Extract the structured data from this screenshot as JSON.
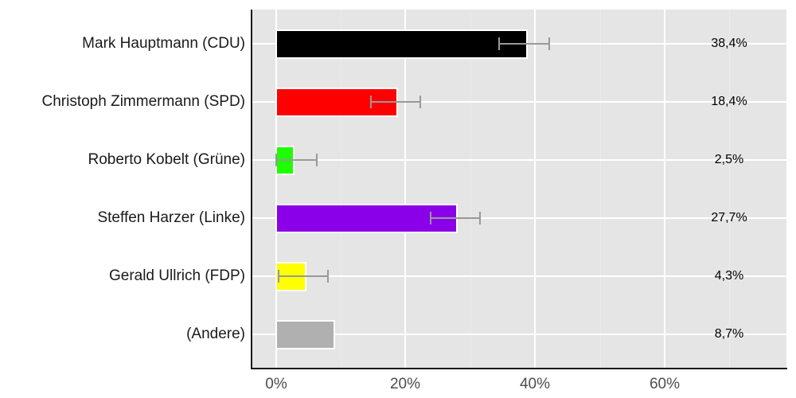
{
  "chart_data": {
    "type": "bar",
    "orientation": "horizontal",
    "title": "",
    "xlabel": "",
    "ylabel": "",
    "xlim": [
      0,
      78
    ],
    "grid": true,
    "categories": [
      "Mark Hauptmann (CDU)",
      "Christoph Zimmermann (SPD)",
      "Roberto Kobelt (Grüne)",
      "Steffen Harzer (Linke)",
      "Gerald Ullrich (FDP)",
      "(Andere)"
    ],
    "values": [
      38.4,
      18.4,
      2.5,
      27.7,
      4.3,
      8.7
    ],
    "value_labels": [
      "38,4%",
      "18,4%",
      "2,5%",
      "27,7%",
      "4,3%",
      "8,7%"
    ],
    "colors": [
      "#000000",
      "#ff0000",
      "#1eff00",
      "#8a00e8",
      "#ffff00",
      "#b0b0b0"
    ],
    "error_bars": [
      {
        "low": 34.5,
        "high": 42.2
      },
      {
        "low": 14.7,
        "high": 22.3
      },
      {
        "low": 0.0,
        "high": 6.3
      },
      {
        "low": 23.9,
        "high": 31.5
      },
      {
        "low": 0.4,
        "high": 8.1
      },
      null
    ],
    "x_ticks": [
      "0%",
      "20%",
      "40%",
      "60%"
    ],
    "x_tick_values": [
      0,
      20,
      40,
      60
    ]
  }
}
